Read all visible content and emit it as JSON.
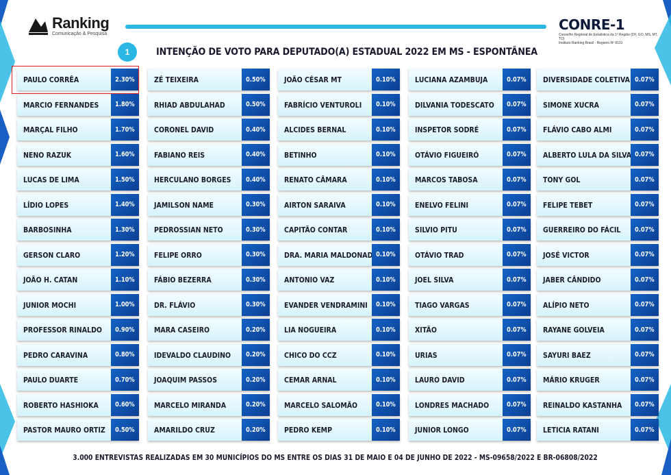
{
  "header": {
    "brand_name": "Ranking",
    "brand_sub": "Comunicação & Pesquisa",
    "conre_name": "CONRE-1",
    "conre_sub_1": "Conselho Regional de Estatística da 1ª Região (DF, GO, MS, MT, TO)",
    "conre_sub_2": "Instituto Ranking Brasil - Registro Nº 8101",
    "title_number": "1",
    "title": "INTENÇÃO DE VOTO PARA DEPUTADO(A) ESTADUAL 2022 EM MS - ESPONTÂNEA"
  },
  "footer": "3.000 ENTREVISTAS REALIZADAS EM 30 MUNICÍPIOS DO MS ENTRE OS DIAS 31 DE MAIO E 04 DE JUNHO DE 2022 - MS-09658/2022 E BR-06808/2022",
  "colors": {
    "accent": "#2bb7e3",
    "pct_blue": "#1463c6",
    "highlight": "#e02020"
  },
  "chart_data": {
    "type": "table",
    "highlighted": "PAULO CORRÊA",
    "columns": [
      [
        {
          "name": "PAULO CORRÊA",
          "value": "2.30%"
        },
        {
          "name": "MARCIO FERNANDES",
          "value": "1.80%"
        },
        {
          "name": "MARÇAL FILHO",
          "value": "1.70%"
        },
        {
          "name": "NENO RAZUK",
          "value": "1.60%"
        },
        {
          "name": "LUCAS DE LIMA",
          "value": "1.50%"
        },
        {
          "name": "LÍDIO LOPES",
          "value": "1.40%"
        },
        {
          "name": "BARBOSINHA",
          "value": "1.30%"
        },
        {
          "name": "GERSON CLARO",
          "value": "1.20%"
        },
        {
          "name": "JOÃO H. CATAN",
          "value": "1.10%"
        },
        {
          "name": "JUNIOR MOCHI",
          "value": "1.00%"
        },
        {
          "name": "PROFESSOR RINALDO",
          "value": "0.90%"
        },
        {
          "name": "PEDRO CARAVINA",
          "value": "0.80%"
        },
        {
          "name": "PAULO DUARTE",
          "value": "0.70%"
        },
        {
          "name": "ROBERTO HASHIOKA",
          "value": "0.60%"
        },
        {
          "name": "PASTOR MAURO ORTIZ",
          "value": "0.50%"
        }
      ],
      [
        {
          "name": "ZÉ TEIXEIRA",
          "value": "0.50%"
        },
        {
          "name": "RHIAD ABDULAHAD",
          "value": "0.50%"
        },
        {
          "name": "CORONEL DAVID",
          "value": "0.40%"
        },
        {
          "name": "FABIANO REIS",
          "value": "0.40%"
        },
        {
          "name": "HERCULANO BORGES",
          "value": "0.40%"
        },
        {
          "name": "JAMILSON NAME",
          "value": "0.30%"
        },
        {
          "name": "PEDROSSIAN NETO",
          "value": "0.30%"
        },
        {
          "name": "FELIPE ORRO",
          "value": "0.30%"
        },
        {
          "name": "FÁBIO BEZERRA",
          "value": "0.30%"
        },
        {
          "name": "DR. FLÁVIO",
          "value": "0.30%"
        },
        {
          "name": "MARA CASEIRO",
          "value": "0.20%"
        },
        {
          "name": "IDEVALDO CLAUDINO",
          "value": "0.20%"
        },
        {
          "name": "JOAQUIM PASSOS",
          "value": "0.20%"
        },
        {
          "name": "MARCELO MIRANDA",
          "value": "0.20%"
        },
        {
          "name": "AMARILDO CRUZ",
          "value": "0.20%"
        }
      ],
      [
        {
          "name": "JOÃO CÉSAR MT",
          "value": "0.10%"
        },
        {
          "name": "FABRÍCIO VENTUROLI",
          "value": "0.10%"
        },
        {
          "name": "ALCIDES BERNAL",
          "value": "0.10%"
        },
        {
          "name": "BETINHO",
          "value": "0.10%"
        },
        {
          "name": "RENATO CÂMARA",
          "value": "0.10%"
        },
        {
          "name": "AIRTON SARAIVA",
          "value": "0.10%"
        },
        {
          "name": "CAPITÃO CONTAR",
          "value": "0.10%"
        },
        {
          "name": "DRA. MARIA MALDONADO",
          "value": "0.10%"
        },
        {
          "name": "ANTONIO VAZ",
          "value": "0.10%"
        },
        {
          "name": "EVANDER VENDRAMINI",
          "value": "0.10%"
        },
        {
          "name": "LIA NOGUEIRA",
          "value": "0.10%"
        },
        {
          "name": "CHICO DO CCZ",
          "value": "0.10%"
        },
        {
          "name": "CEMAR ARNAL",
          "value": "0.10%"
        },
        {
          "name": "MARCELO SALOMÃO",
          "value": "0.10%"
        },
        {
          "name": "PEDRO KEMP",
          "value": "0.10%"
        }
      ],
      [
        {
          "name": "LUCIANA AZAMBUJA",
          "value": "0.07%"
        },
        {
          "name": "DILVANIA TODESCATO",
          "value": "0.07%"
        },
        {
          "name": "INSPETOR SODRÉ",
          "value": "0.07%"
        },
        {
          "name": "OTÁVIO FIGUEIRÓ",
          "value": "0.07%"
        },
        {
          "name": "MARCOS TABOSA",
          "value": "0.07%"
        },
        {
          "name": "ENELVO FELINI",
          "value": "0.07%"
        },
        {
          "name": "SILVIO PITU",
          "value": "0.07%"
        },
        {
          "name": "OTÁVIO TRAD",
          "value": "0.07%"
        },
        {
          "name": "JOEL SILVA",
          "value": "0.07%"
        },
        {
          "name": "TIAGO VARGAS",
          "value": "0.07%"
        },
        {
          "name": "XITÃO",
          "value": "0.07%"
        },
        {
          "name": "URIAS",
          "value": "0.07%"
        },
        {
          "name": "LAURO DAVID",
          "value": "0.07%"
        },
        {
          "name": "LONDRES MACHADO",
          "value": "0.07%"
        },
        {
          "name": "JUNIOR LONGO",
          "value": "0.07%"
        }
      ],
      [
        {
          "name": "DIVERSIDADE COLETIVA",
          "value": "0.07%"
        },
        {
          "name": "SIMONE XUCRA",
          "value": "0.07%"
        },
        {
          "name": "FLÁVIO CABO ALMI",
          "value": "0.07%"
        },
        {
          "name": "ALBERTO LULA DA SILVA",
          "value": "0.07%"
        },
        {
          "name": "TONY GOL",
          "value": "0.07%"
        },
        {
          "name": "FELIPE TEBET",
          "value": "0.07%"
        },
        {
          "name": "GUERREIRO DO FÁCIL",
          "value": "0.07%"
        },
        {
          "name": "JOSÉ VICTOR",
          "value": "0.07%"
        },
        {
          "name": "JABER CÂNDIDO",
          "value": "0.07%"
        },
        {
          "name": "ALÍPIO NETO",
          "value": "0.07%"
        },
        {
          "name": "RAYANE GOLVEIA",
          "value": "0.07%"
        },
        {
          "name": "SAYURI BAEZ",
          "value": "0.07%"
        },
        {
          "name": "MÁRIO KRUGER",
          "value": "0.07%"
        },
        {
          "name": "REINALDO KASTANHA",
          "value": "0.07%"
        },
        {
          "name": "LETICIA RATANI",
          "value": "0.07%"
        }
      ]
    ]
  }
}
